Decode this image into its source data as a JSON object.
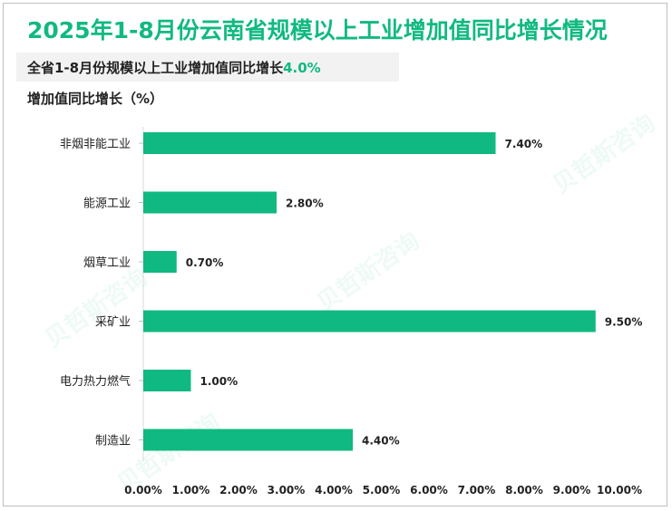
{
  "title": "2025年1-8月份云南省规模以上工业增加值同比增长情况",
  "subtitle": {
    "prefix": "全省1-8月份规模以上工业增加值同比增长",
    "value": "4.0%"
  },
  "colors": {
    "accent": "#10b981",
    "bar": "#10b981",
    "text": "#222222"
  },
  "chart_data": {
    "type": "bar",
    "orientation": "horizontal",
    "ylabel": "增加值同比增长（%）",
    "categories": [
      "非烟非能工业",
      "能源工业",
      "烟草工业",
      "采矿业",
      "电力热力燃气",
      "制造业"
    ],
    "values": [
      7.4,
      2.8,
      0.7,
      9.5,
      1.0,
      4.4
    ],
    "value_labels": [
      "7.40%",
      "2.80%",
      "0.70%",
      "9.50%",
      "1.00%",
      "4.40%"
    ],
    "xlim": [
      0,
      10
    ],
    "x_ticks": [
      0,
      1,
      2,
      3,
      4,
      5,
      6,
      7,
      8,
      9,
      10
    ],
    "x_tick_labels": [
      "0.00%",
      "1.00%",
      "2.00%",
      "3.00%",
      "4.00%",
      "5.00%",
      "6.00%",
      "7.00%",
      "8.00%",
      "9.00%",
      "10.00%"
    ],
    "grid": false,
    "legend": "none"
  }
}
